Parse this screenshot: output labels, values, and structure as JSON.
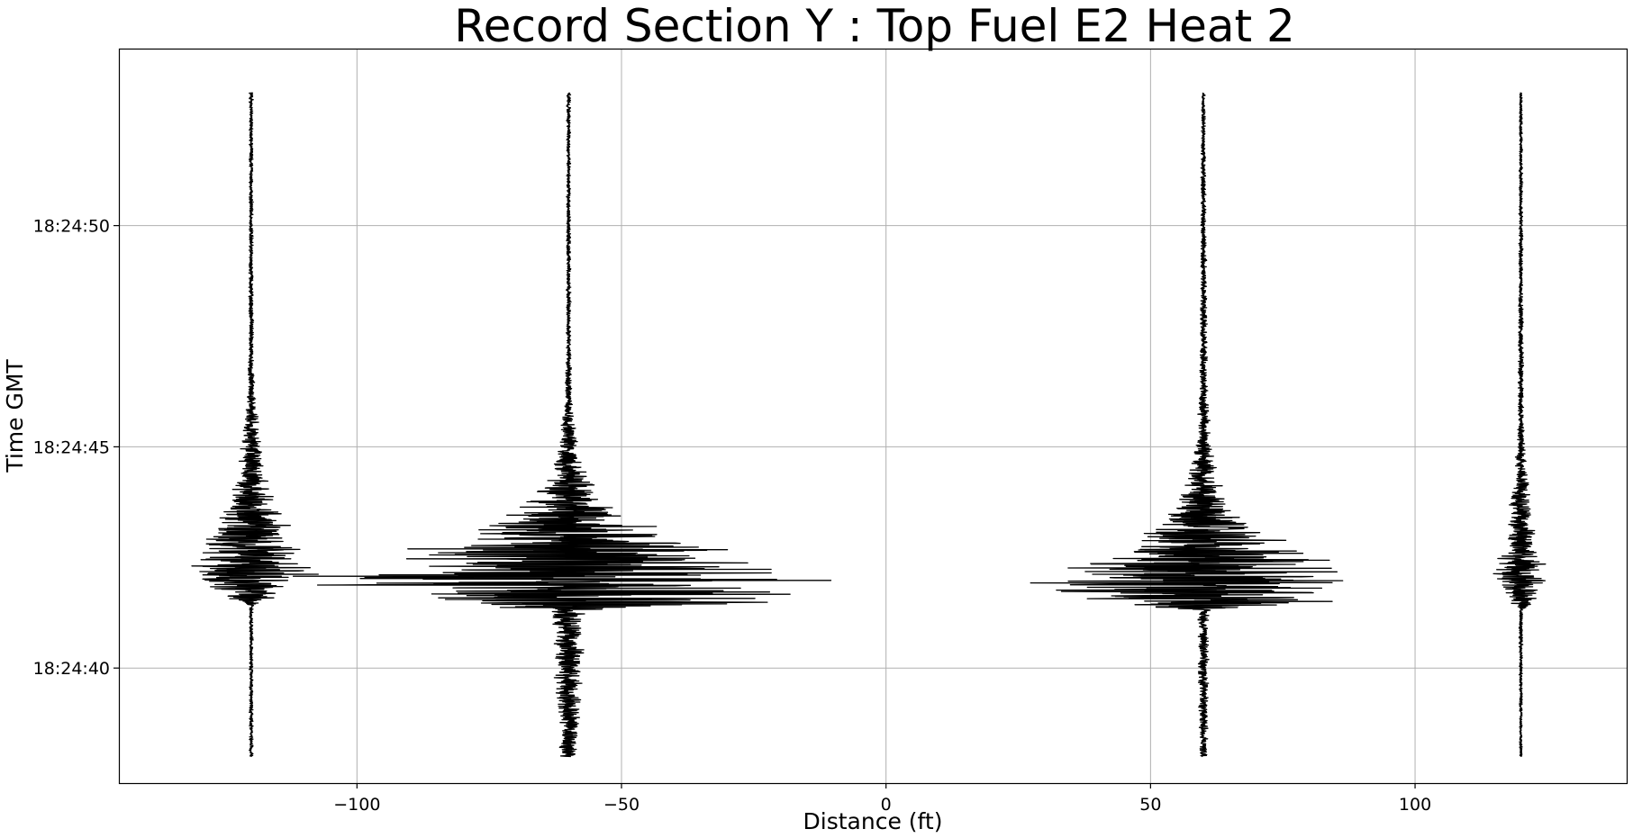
{
  "chart_data": {
    "type": "line",
    "title": "Record Section Y : Top Fuel E2 Heat 2",
    "xlabel": "Distance (ft)",
    "ylabel": "Time GMT",
    "xlim": [
      -145,
      140
    ],
    "ylim_seconds": [
      37.4,
      54.0
    ],
    "x_ticks": [
      {
        "value": -100,
        "label": "−100"
      },
      {
        "value": -50,
        "label": "−50"
      },
      {
        "value": 0,
        "label": "0"
      },
      {
        "value": 50,
        "label": "50"
      },
      {
        "value": 100,
        "label": "100"
      }
    ],
    "y_ticks": [
      {
        "value": 40,
        "label": "18:24:40"
      },
      {
        "value": 45,
        "label": "18:24:45"
      },
      {
        "value": 50,
        "label": "18:24:50"
      }
    ],
    "time_start_label": "18:24:38",
    "time_end_label": "18:24:53",
    "grid": true,
    "series": [
      {
        "offset_ft": -120,
        "envelope": [
          {
            "t": 38.0,
            "a": 0.4
          },
          {
            "t": 41.4,
            "a": 0.4
          },
          {
            "t": 41.5,
            "a": 2.5
          },
          {
            "t": 41.6,
            "a": 6
          },
          {
            "t": 41.8,
            "a": 8
          },
          {
            "t": 42.2,
            "a": 14
          },
          {
            "t": 42.6,
            "a": 11
          },
          {
            "t": 43.0,
            "a": 10
          },
          {
            "t": 43.3,
            "a": 7
          },
          {
            "t": 43.8,
            "a": 5
          },
          {
            "t": 44.4,
            "a": 3
          },
          {
            "t": 45.2,
            "a": 2
          },
          {
            "t": 46.0,
            "a": 1
          },
          {
            "t": 47.0,
            "a": 0.5
          },
          {
            "t": 53.0,
            "a": 0.4
          }
        ]
      },
      {
        "offset_ft": -60,
        "envelope": [
          {
            "t": 38.0,
            "a": 1.8
          },
          {
            "t": 39.0,
            "a": 2.4
          },
          {
            "t": 40.0,
            "a": 3
          },
          {
            "t": 41.0,
            "a": 3
          },
          {
            "t": 41.3,
            "a": 4
          },
          {
            "t": 41.5,
            "a": 48
          },
          {
            "t": 41.7,
            "a": 52
          },
          {
            "t": 42.0,
            "a": 56
          },
          {
            "t": 42.3,
            "a": 44
          },
          {
            "t": 42.7,
            "a": 34
          },
          {
            "t": 43.0,
            "a": 24
          },
          {
            "t": 43.4,
            "a": 14
          },
          {
            "t": 43.8,
            "a": 8
          },
          {
            "t": 44.3,
            "a": 4
          },
          {
            "t": 45.0,
            "a": 2
          },
          {
            "t": 46.0,
            "a": 1
          },
          {
            "t": 47.0,
            "a": 0.5
          },
          {
            "t": 53.0,
            "a": 0.4
          }
        ]
      },
      {
        "offset_ft": 60,
        "envelope": [
          {
            "t": 38.0,
            "a": 0.8
          },
          {
            "t": 40.0,
            "a": 1.1
          },
          {
            "t": 41.3,
            "a": 1.2
          },
          {
            "t": 41.5,
            "a": 30
          },
          {
            "t": 41.7,
            "a": 32
          },
          {
            "t": 41.9,
            "a": 36
          },
          {
            "t": 42.2,
            "a": 28
          },
          {
            "t": 42.5,
            "a": 24
          },
          {
            "t": 42.8,
            "a": 18
          },
          {
            "t": 43.2,
            "a": 10
          },
          {
            "t": 43.6,
            "a": 7
          },
          {
            "t": 44.0,
            "a": 4
          },
          {
            "t": 44.5,
            "a": 3
          },
          {
            "t": 45.2,
            "a": 1.5
          },
          {
            "t": 46.5,
            "a": 0.8
          },
          {
            "t": 53.0,
            "a": 0.4
          }
        ]
      },
      {
        "offset_ft": 120,
        "envelope": [
          {
            "t": 38.0,
            "a": 0.3
          },
          {
            "t": 41.3,
            "a": 0.4
          },
          {
            "t": 41.5,
            "a": 3
          },
          {
            "t": 41.8,
            "a": 4
          },
          {
            "t": 42.1,
            "a": 6
          },
          {
            "t": 42.4,
            "a": 5
          },
          {
            "t": 42.8,
            "a": 3
          },
          {
            "t": 43.3,
            "a": 2.5
          },
          {
            "t": 44.0,
            "a": 2
          },
          {
            "t": 44.5,
            "a": 1.2
          },
          {
            "t": 45.5,
            "a": 0.6
          },
          {
            "t": 53.0,
            "a": 0.3
          }
        ]
      }
    ]
  }
}
